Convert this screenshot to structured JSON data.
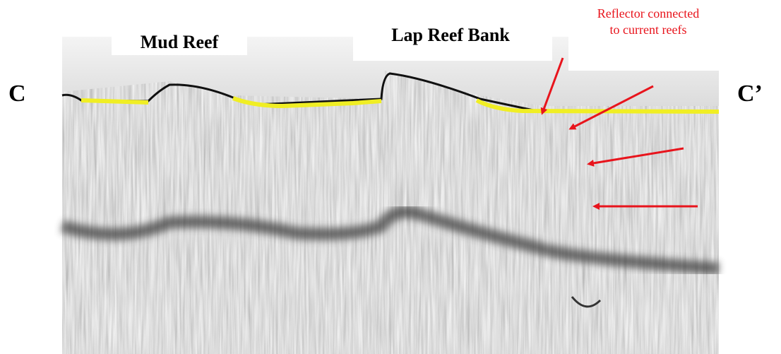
{
  "labels": {
    "left_end": "C",
    "right_end": "C’",
    "mud_reef": "Mud Reef",
    "lap_reef_bank": "Lap Reef Bank",
    "reflector_note": [
      "Reflector connected",
      "to current reefs"
    ]
  }
}
